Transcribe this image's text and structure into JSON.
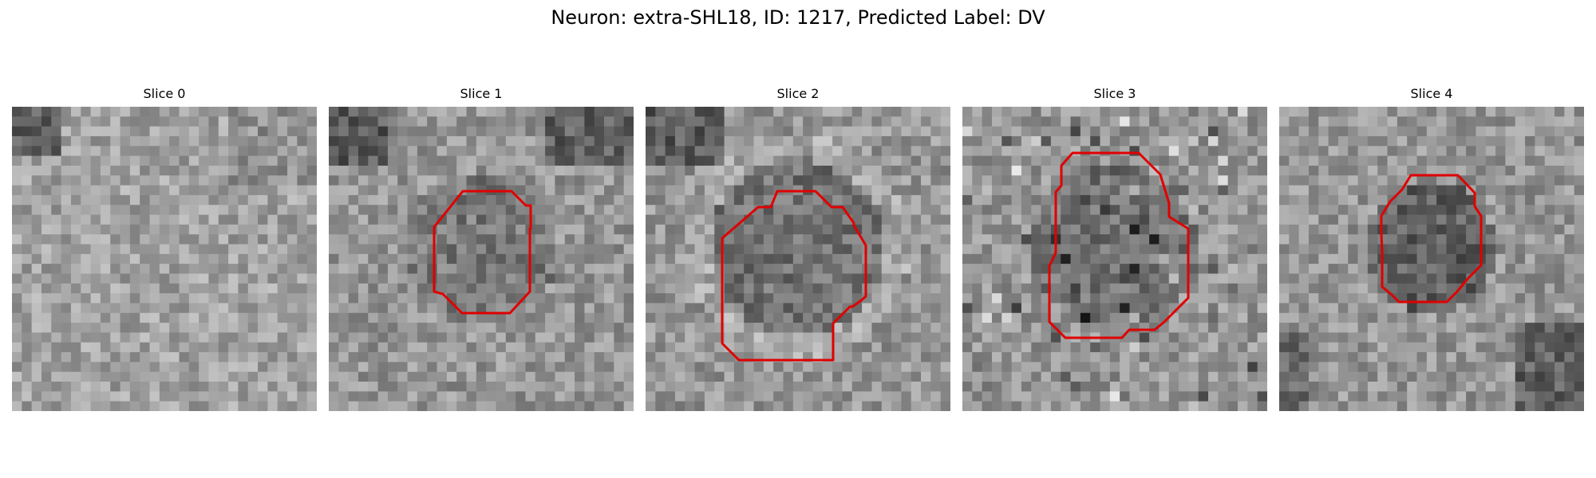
{
  "figure": {
    "title": "Neuron: extra-SHL18, ID: 1217, Predicted Label: DV"
  },
  "colors": {
    "contour": "#e00000",
    "background": "#ffffff"
  },
  "panels": [
    {
      "title": "Slice 0",
      "image": "grayscale-slice-0",
      "has_contour": false
    },
    {
      "title": "Slice 1",
      "image": "grayscale-slice-1",
      "has_contour": true
    },
    {
      "title": "Slice 2",
      "image": "grayscale-slice-2",
      "has_contour": true
    },
    {
      "title": "Slice 3",
      "image": "grayscale-slice-3",
      "has_contour": true
    },
    {
      "title": "Slice 4",
      "image": "grayscale-slice-4",
      "has_contour": true
    }
  ]
}
